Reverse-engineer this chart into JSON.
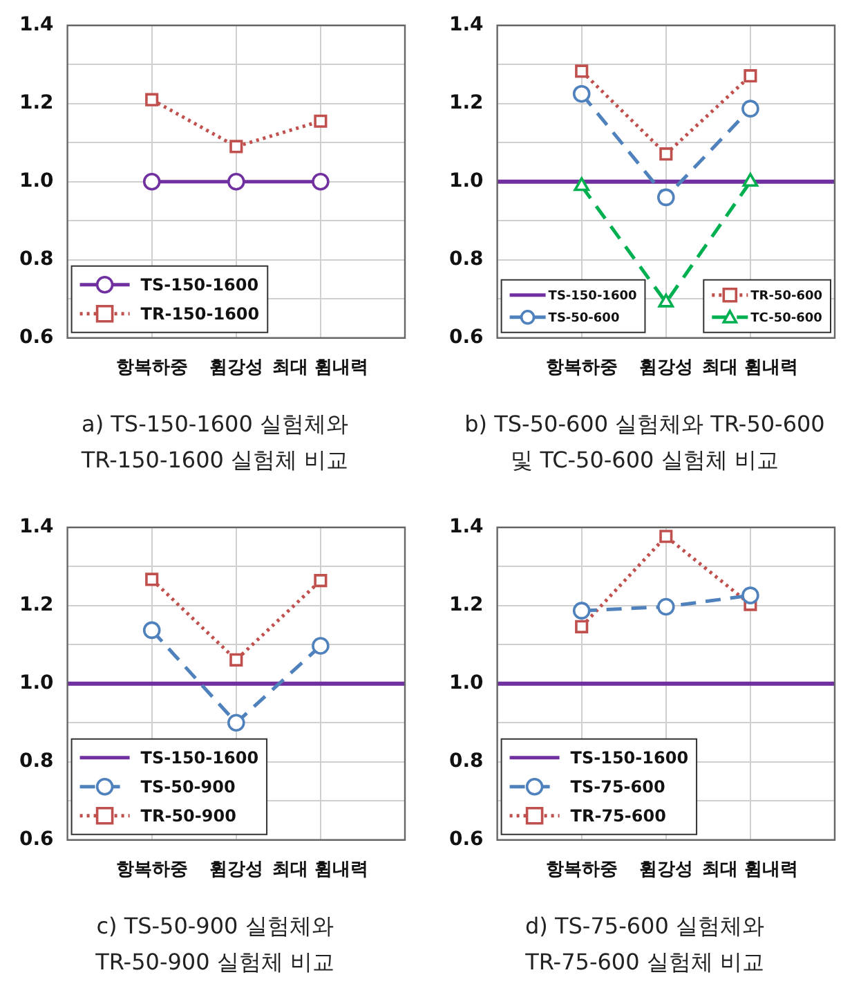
{
  "chart_data": [
    {
      "type": "line",
      "categories": [
        "항복하중",
        "휨강성",
        "최대 휨내력"
      ],
      "ylim": [
        0.6,
        1.4
      ],
      "yticks": [
        0.6,
        {
          "value": 0.7,
          "label": null
        },
        0.8,
        {
          "value": 0.9,
          "label": null
        },
        {
          "value": 1,
          "label": "1.0"
        },
        {
          "value": 1.1,
          "label": null
        },
        1.2,
        {
          "value": 1.3,
          "label": null
        },
        1.4
      ],
      "grid": true,
      "legend": "bottom left",
      "series": [
        {
          "name": "TS-150-1600",
          "color": "#7030a0",
          "values": [
            1.0,
            1.0,
            1.0
          ],
          "marker": "circle",
          "line_style": "solid"
        },
        {
          "name": "TR-150-1600",
          "color": "#c0504d",
          "values": [
            1.21,
            1.09,
            1.155
          ],
          "marker": "square",
          "line_style": "dotted"
        }
      ],
      "annotations": [
        "a) TS-150-1600 실험체와\nTR-150-1600 실험체 비교"
      ]
    },
    {
      "type": "line",
      "categories": [
        "항복하중",
        "휨강성",
        "최대 휨내력"
      ],
      "ylim": [
        0.6,
        1.4
      ],
      "yticks": [
        0.6,
        {
          "value": 0.7,
          "label": null
        },
        0.8,
        {
          "value": 0.9,
          "label": null
        },
        {
          "value": 1,
          "label": "1.0"
        },
        {
          "value": 1.1,
          "label": null
        },
        1.2,
        {
          "value": 1.3,
          "label": null
        },
        1.4
      ],
      "grid": true,
      "legend": "bottom",
      "ref_lines": [
        {
          "axis": "y",
          "value": 1.0,
          "label": "TS-150-1600",
          "color": "#7030a0"
        }
      ],
      "series": [
        {
          "name": "TS-50-600",
          "color": "#4f81bd",
          "values": [
            1.225,
            0.96,
            1.187
          ],
          "marker": "circle",
          "line_style": "dashed"
        },
        {
          "name": "TR-50-600",
          "color": "#c0504d",
          "values": [
            1.283,
            1.071,
            1.271
          ],
          "marker": "square",
          "line_style": "dotted"
        },
        {
          "name": "TC-50-600",
          "color": "#00b050",
          "values": [
            0.989,
            0.691,
            1.0
          ],
          "marker": "triangle",
          "line_style": "dashed"
        }
      ],
      "annotations": [
        "b) TS-50-600 실험체와 TR-50-600\n및 TC-50-600 실험체 비교"
      ]
    },
    {
      "type": "line",
      "categories": [
        "항복하중",
        "휨강성",
        "최대 휨내력"
      ],
      "ylim": [
        0.6,
        1.4
      ],
      "yticks": [
        0.6,
        {
          "value": 0.7,
          "label": null
        },
        0.8,
        {
          "value": 0.9,
          "label": null
        },
        {
          "value": 1,
          "label": "1.0"
        },
        {
          "value": 1.1,
          "label": null
        },
        1.2,
        {
          "value": 1.3,
          "label": null
        },
        1.4
      ],
      "grid": true,
      "legend": "bottom left",
      "ref_lines": [
        {
          "axis": "y",
          "value": 1.0,
          "label": "TS-150-1600",
          "color": "#7030a0"
        }
      ],
      "series": [
        {
          "name": "TS-50-900",
          "color": "#4f81bd",
          "values": [
            1.137,
            0.9,
            1.097
          ],
          "marker": "circle",
          "line_style": "dashed"
        },
        {
          "name": "TR-50-900",
          "color": "#c0504d",
          "values": [
            1.267,
            1.061,
            1.264
          ],
          "marker": "square",
          "line_style": "dotted"
        }
      ],
      "annotations": [
        "c) TS-50-900 실험체와\nTR-50-900 실험체 비교"
      ]
    },
    {
      "type": "line",
      "categories": [
        "항복하중",
        "휨강성",
        "최대 휨내력"
      ],
      "ylim": [
        0.6,
        1.4
      ],
      "yticks": [
        0.6,
        {
          "value": 0.7,
          "label": null
        },
        0.8,
        {
          "value": 0.9,
          "label": null
        },
        {
          "value": 1,
          "label": "1.0"
        },
        {
          "value": 1.1,
          "label": null
        },
        1.2,
        {
          "value": 1.3,
          "label": null
        },
        1.4
      ],
      "grid": true,
      "legend": "bottom left",
      "ref_lines": [
        {
          "axis": "y",
          "value": 1.0,
          "label": "TS-150-1600",
          "color": "#7030a0"
        }
      ],
      "series": [
        {
          "name": "TS-75-600",
          "color": "#4f81bd",
          "values": [
            1.187,
            1.197,
            1.226
          ],
          "marker": "circle",
          "line_style": "dashed"
        },
        {
          "name": "TR-75-600",
          "color": "#c0504d",
          "values": [
            1.146,
            1.377,
            1.203
          ],
          "marker": "square",
          "line_style": "dotted"
        }
      ],
      "annotations": [
        "d) TS-75-600 실험체와\nTR-75-600 실험체 비교"
      ]
    }
  ]
}
